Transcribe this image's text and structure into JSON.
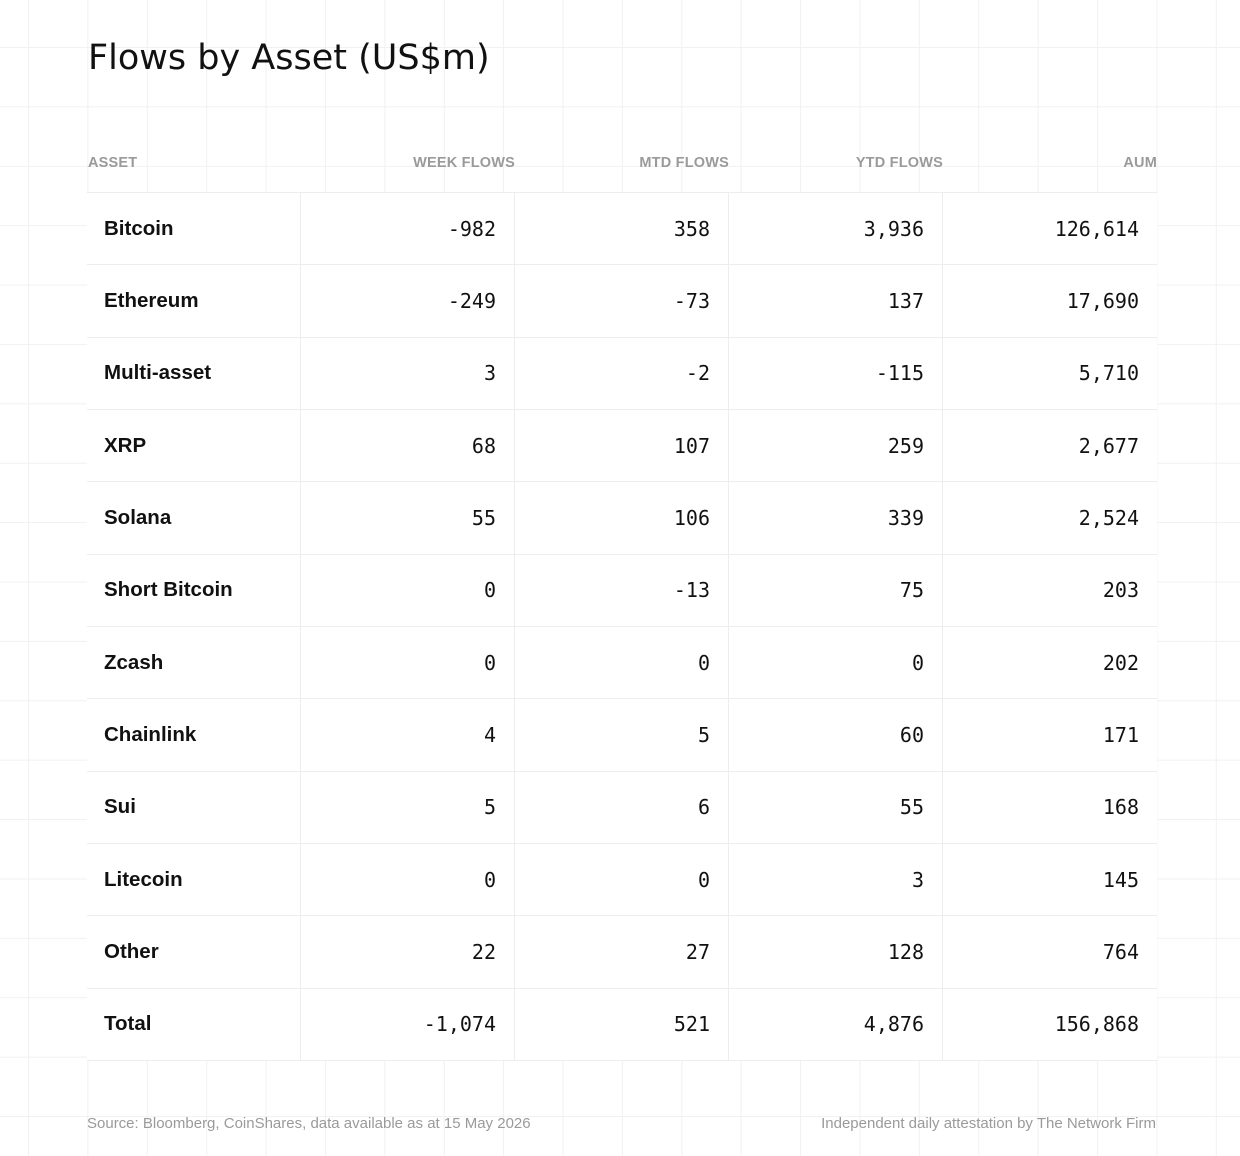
{
  "chart_data": {
    "type": "table",
    "title": "Flows by Asset (US$m)",
    "columns": [
      "ASSET",
      "WEEK FLOWS",
      "MTD FLOWS",
      "YTD FLOWS",
      "AUM"
    ],
    "rows": [
      {
        "asset": "Bitcoin",
        "week": "-982",
        "mtd": "358",
        "ytd": "3,936",
        "aum": "126,614"
      },
      {
        "asset": "Ethereum",
        "week": "-249",
        "mtd": "-73",
        "ytd": "137",
        "aum": "17,690"
      },
      {
        "asset": "Multi-asset",
        "week": "3",
        "mtd": "-2",
        "ytd": "-115",
        "aum": "5,710"
      },
      {
        "asset": "XRP",
        "week": "68",
        "mtd": "107",
        "ytd": "259",
        "aum": "2,677"
      },
      {
        "asset": "Solana",
        "week": "55",
        "mtd": "106",
        "ytd": "339",
        "aum": "2,524"
      },
      {
        "asset": "Short Bitcoin",
        "week": "0",
        "mtd": "-13",
        "ytd": "75",
        "aum": "203"
      },
      {
        "asset": "Zcash",
        "week": "0",
        "mtd": "0",
        "ytd": "0",
        "aum": "202"
      },
      {
        "asset": "Chainlink",
        "week": "4",
        "mtd": "5",
        "ytd": "60",
        "aum": "171"
      },
      {
        "asset": "Sui",
        "week": "5",
        "mtd": "6",
        "ytd": "55",
        "aum": "168"
      },
      {
        "asset": "Litecoin",
        "week": "0",
        "mtd": "0",
        "ytd": "3",
        "aum": "145"
      },
      {
        "asset": "Other",
        "week": "22",
        "mtd": "27",
        "ytd": "128",
        "aum": "764"
      },
      {
        "asset": "Total",
        "week": "-1,074",
        "mtd": "521",
        "ytd": "4,876",
        "aum": "156,868"
      }
    ]
  },
  "footer": {
    "source": "Source: Bloomberg, CoinShares, data available as at 15 May 2026",
    "attestation": "Independent daily attestation by The Network Firm"
  }
}
